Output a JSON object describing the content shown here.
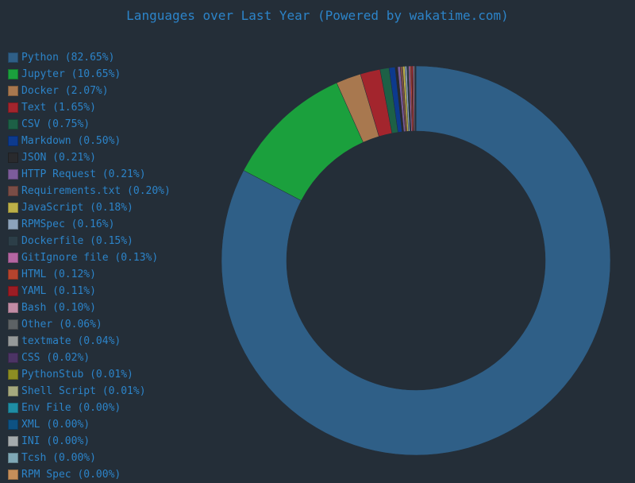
{
  "chart_data": {
    "type": "pie",
    "title": "Languages over Last Year (Powered by wakatime.com)",
    "legend_position": "left",
    "series": [
      {
        "name": "Python",
        "label": "Python (82.65%)",
        "value": 82.65,
        "color": "#2f5f87"
      },
      {
        "name": "Jupyter",
        "label": "Jupyter (10.65%)",
        "value": 10.65,
        "color": "#1ba03d"
      },
      {
        "name": "Docker",
        "label": "Docker (2.07%)",
        "value": 2.07,
        "color": "#a8784f"
      },
      {
        "name": "Text",
        "label": "Text (1.65%)",
        "value": 1.65,
        "color": "#a3252d"
      },
      {
        "name": "CSV",
        "label": "CSV (0.75%)",
        "value": 0.75,
        "color": "#1d6046"
      },
      {
        "name": "Markdown",
        "label": "Markdown (0.50%)",
        "value": 0.5,
        "color": "#0d3a8d"
      },
      {
        "name": "JSON",
        "label": "JSON (0.21%)",
        "value": 0.21,
        "color": "#292a2d"
      },
      {
        "name": "HTTP Request",
        "label": "HTTP Request (0.21%)",
        "value": 0.21,
        "color": "#7c5c9b"
      },
      {
        "name": "Requirements.txt",
        "label": "Requirements.txt (0.20%)",
        "value": 0.2,
        "color": "#7a4d46"
      },
      {
        "name": "JavaScript",
        "label": "JavaScript (0.18%)",
        "value": 0.18,
        "color": "#bdb048"
      },
      {
        "name": "RPMSpec",
        "label": "RPMSpec (0.16%)",
        "value": 0.16,
        "color": "#8da3bb"
      },
      {
        "name": "Dockerfile",
        "label": "Dockerfile (0.15%)",
        "value": 0.15,
        "color": "#2c3e48"
      },
      {
        "name": "GitIgnore file",
        "label": "GitIgnore file (0.13%)",
        "value": 0.13,
        "color": "#b466a2"
      },
      {
        "name": "HTML",
        "label": "HTML (0.12%)",
        "value": 0.12,
        "color": "#b5442e"
      },
      {
        "name": "YAML",
        "label": "YAML (0.11%)",
        "value": 0.11,
        "color": "#9b1d24"
      },
      {
        "name": "Bash",
        "label": "Bash (0.10%)",
        "value": 0.1,
        "color": "#c18ca5"
      },
      {
        "name": "Other",
        "label": "Other (0.06%)",
        "value": 0.06,
        "color": "#5d6265"
      },
      {
        "name": "textmate",
        "label": "textmate (0.04%)",
        "value": 0.04,
        "color": "#95999a"
      },
      {
        "name": "CSS",
        "label": "CSS (0.02%)",
        "value": 0.02,
        "color": "#4c3465"
      },
      {
        "name": "PythonStub",
        "label": "PythonStub (0.01%)",
        "value": 0.01,
        "color": "#8c8d23"
      },
      {
        "name": "Shell Script",
        "label": "Shell Script (0.01%)",
        "value": 0.01,
        "color": "#a6a97e"
      },
      {
        "name": "Env File",
        "label": "Env File (0.00%)",
        "value": 0.0,
        "color": "#1f8da4"
      },
      {
        "name": "XML",
        "label": "XML (0.00%)",
        "value": 0.0,
        "color": "#0e5283"
      },
      {
        "name": "INI",
        "label": "INI (0.00%)",
        "value": 0.0,
        "color": "#a4aaad"
      },
      {
        "name": "Tcsh",
        "label": "Tcsh (0.00%)",
        "value": 0.0,
        "color": "#7fa8b6"
      },
      {
        "name": "RPM Spec",
        "label": "RPM Spec (0.00%)",
        "value": 0.0,
        "color": "#c58e5a"
      }
    ]
  }
}
